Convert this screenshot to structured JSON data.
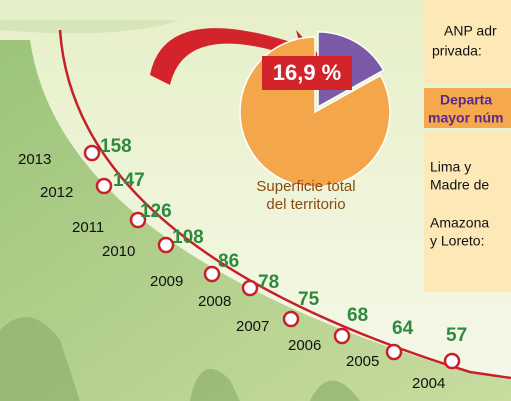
{
  "chart_data": [
    {
      "type": "timeline",
      "categories": [
        "2013",
        "2012",
        "2011",
        "2010",
        "2009",
        "2008",
        "2007",
        "2006",
        "2005",
        "2004"
      ],
      "values": [
        158,
        147,
        126,
        108,
        86,
        78,
        75,
        68,
        64,
        57
      ],
      "color": "#c8202a",
      "label_color": "#2e8b3e"
    },
    {
      "type": "pie",
      "categories": [
        null,
        "Superficie total del territorio"
      ],
      "values": [
        16.9,
        83.1
      ],
      "value_labels": [
        "16,9 %",
        null
      ],
      "colors": [
        "#7b5ba8",
        "#f4a64a"
      ]
    }
  ],
  "sidebar": {
    "top": [
      "ANP adr",
      "privada:"
    ],
    "header": [
      "Departa",
      "mayor núm"
    ],
    "items": [
      [
        "Lima y",
        "Madre de"
      ],
      [
        "Amazona",
        "y Loreto:"
      ]
    ]
  }
}
